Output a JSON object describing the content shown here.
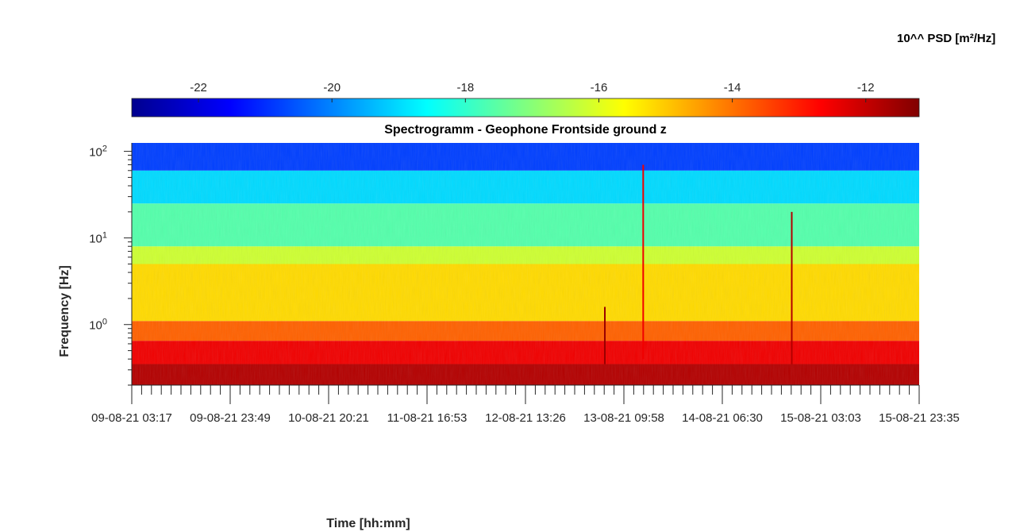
{
  "chart_data": {
    "type": "heatmap",
    "title": "Spectrogramm - Geophone Frontside ground z",
    "xlabel": "Time [hh:mm]",
    "ylabel": "Frequency [Hz]",
    "colorbar": {
      "label": "10^^ PSD [m²/Hz]",
      "range": [
        -23,
        -11.2
      ],
      "ticks": [
        "-22",
        "-20",
        "-18",
        "-16",
        "-14",
        "-12"
      ],
      "tick_values": [
        -22,
        -20,
        -18,
        -16,
        -14,
        -12
      ],
      "colormap": "jet",
      "placement": "top"
    },
    "y_axis": {
      "scale": "log",
      "range": [
        0.2,
        125
      ],
      "ticks": [
        1,
        10,
        100
      ],
      "tick_labels": [
        {
          "base": "10",
          "exp": "0"
        },
        {
          "base": "10",
          "exp": "1"
        },
        {
          "base": "10",
          "exp": "2"
        }
      ]
    },
    "x_axis": {
      "start": "09-08-21 03:17",
      "end": "15-08-21 23:35",
      "tick_labels": [
        "09-08-21 03:17",
        "09-08-21 23:49",
        "10-08-21 20:21",
        "11-08-21 16:53",
        "12-08-21 13:26",
        "13-08-21 09:58",
        "14-08-21 06:30",
        "15-08-21 03:03",
        "15-08-21 23:35"
      ]
    },
    "bands": [
      {
        "freq_hz": [
          0.2,
          0.35
        ],
        "psd_log10": -11.8
      },
      {
        "freq_hz": [
          0.35,
          0.65
        ],
        "psd_log10": -12.5
      },
      {
        "freq_hz": [
          0.65,
          1.1
        ],
        "psd_log10": -13.8
      },
      {
        "freq_hz": [
          1.1,
          5.0
        ],
        "psd_log10": -15.2
      },
      {
        "freq_hz": [
          5.0,
          8.0
        ],
        "psd_log10": -16.2
      },
      {
        "freq_hz": [
          8.0,
          25.0
        ],
        "psd_log10": -17.6
      },
      {
        "freq_hz": [
          25.0,
          60.0
        ],
        "psd_log10": -19.0
      },
      {
        "freq_hz": [
          60.0,
          125.0
        ],
        "psd_log10": -20.8
      }
    ],
    "events": [
      {
        "time": "13-08-21 06:00",
        "freq_hz": [
          0.35,
          1.6
        ],
        "psd_log10": -11.5
      },
      {
        "time": "13-08-21 14:00",
        "freq_hz": [
          0.4,
          70
        ],
        "psd_log10": -12.5
      },
      {
        "time": "14-08-21 21:00",
        "freq_hz": [
          0.35,
          20
        ],
        "psd_log10": -11.8
      }
    ],
    "grid": false
  }
}
